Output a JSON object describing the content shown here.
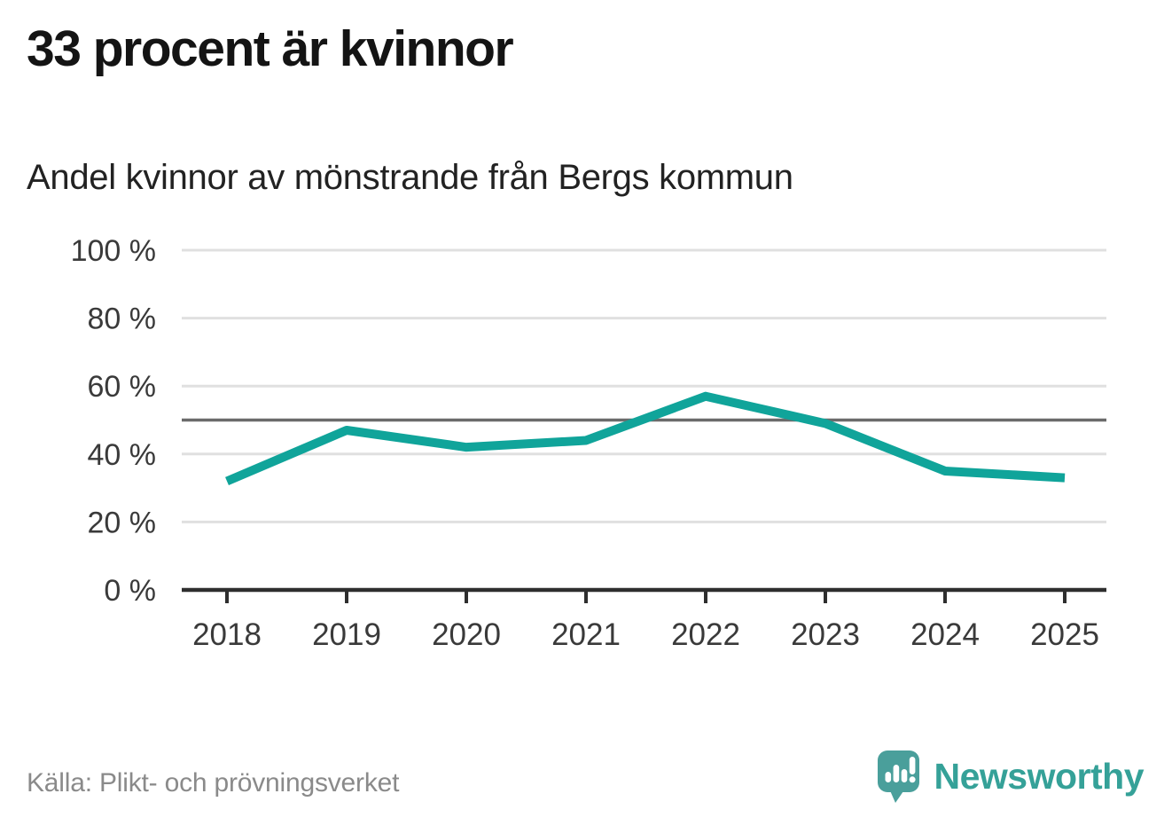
{
  "header": {
    "title": "33 procent är kvinnor",
    "subtitle": "Andel kvinnor av mönstrande från Bergs kommun"
  },
  "chart_data": {
    "type": "line",
    "title": "33 procent är kvinnor",
    "subtitle": "Andel kvinnor av mönstrande från Bergs kommun",
    "x": [
      "2018",
      "2019",
      "2020",
      "2021",
      "2022",
      "2023",
      "2024",
      "2025"
    ],
    "series": [
      {
        "name": "Andel kvinnor av mönstrande (%)",
        "color": "#10a49a",
        "values": [
          32,
          47,
          42,
          44,
          57,
          49,
          35,
          33
        ]
      }
    ],
    "xlabel": "",
    "ylabel": "",
    "ylim": [
      0,
      100
    ],
    "yticks": [
      0,
      20,
      40,
      60,
      80,
      100
    ],
    "ytick_suffix": " %",
    "reference_line": {
      "value": 50
    },
    "grid": true,
    "legend": "none"
  },
  "footer": {
    "source": "Källa: Plikt- och prövningsverket",
    "brand": "Newsworthy"
  },
  "icons": {
    "logo": "speech-bubble-bar-chart-exclamation-icon"
  },
  "colors": {
    "line": "#10a49a",
    "grid": "#e0e0e0",
    "reference": "#6b6b6b",
    "axis": "#2e2e2e",
    "tick_label": "#3a3a3a",
    "title": "#141414",
    "source_text": "#8a8a8a",
    "brand_logo": "#4a9f9b",
    "brand_text": "#35a198",
    "background": "#ffffff"
  }
}
